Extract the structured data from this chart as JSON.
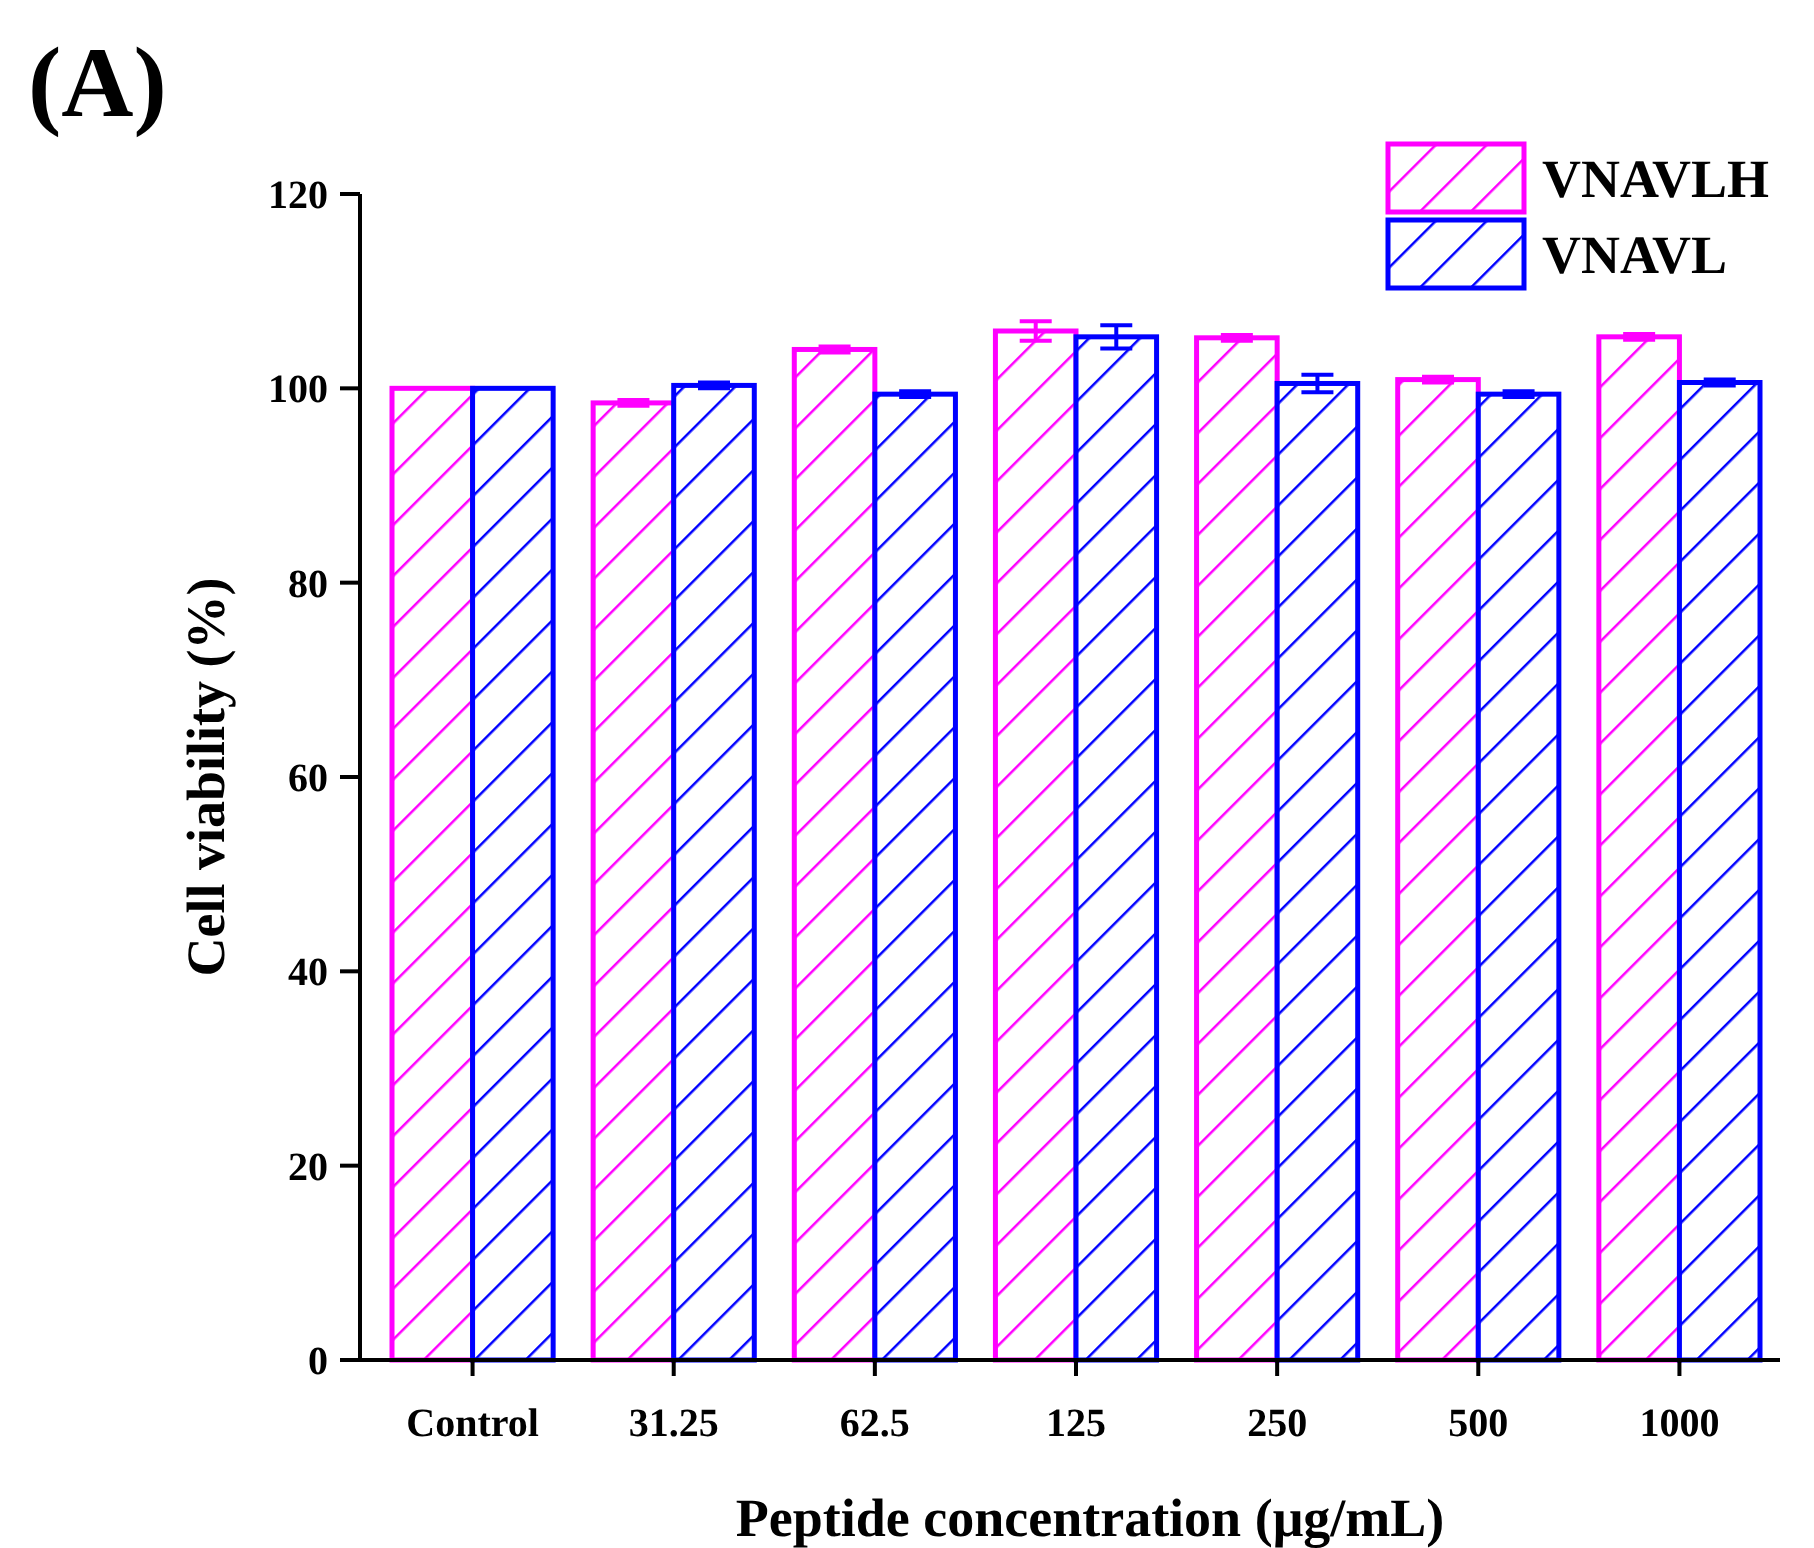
{
  "chart_data": {
    "type": "bar",
    "annotations": [
      "(A)"
    ],
    "xlabel": "Peptide concentration (μg/mL)",
    "ylabel": "Cell viability (%)",
    "categories": [
      "Control",
      "31.25",
      "62.5",
      "125",
      "250",
      "500",
      "1000"
    ],
    "series": [
      {
        "name": "VNAVLH",
        "color": "#ff00ff",
        "values": [
          100,
          98.5,
          104,
          105.9,
          105.2,
          100.9,
          105.3
        ],
        "errors": [
          null,
          0.3,
          0.3,
          1,
          0.3,
          0.3,
          0.3
        ]
      },
      {
        "name": "VNAVL",
        "color": "#0000ff",
        "values": [
          100,
          100.3,
          99.4,
          105.3,
          100.5,
          99.4,
          100.6
        ],
        "errors": [
          null,
          0.3,
          0.3,
          1.2,
          0.9,
          0.3,
          0.3
        ]
      }
    ],
    "ylim": [
      0,
      120
    ],
    "yticks": [
      0,
      20,
      40,
      60,
      80,
      100,
      120
    ],
    "grid": false,
    "legend": "top right"
  }
}
